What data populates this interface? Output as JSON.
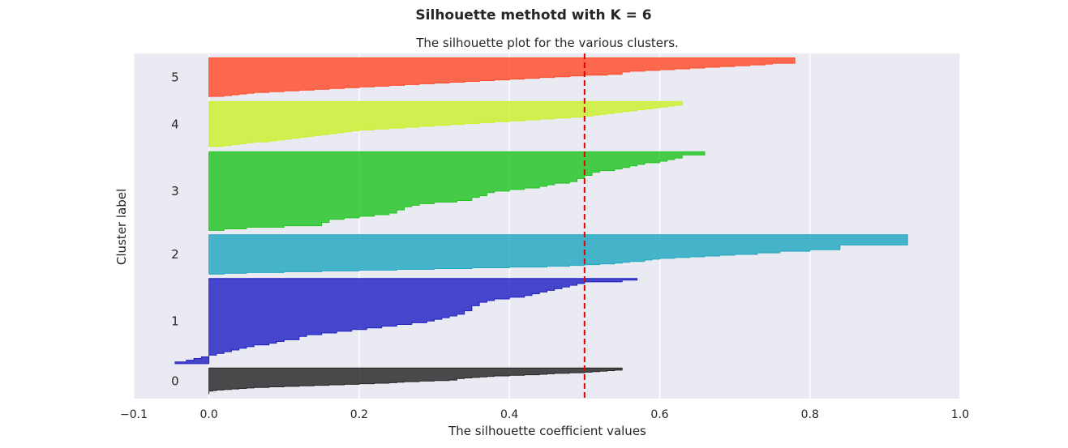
{
  "chart_data": {
    "type": "area",
    "suptitle": "Silhouette  methotd with K = 6",
    "title": "The silhouette plot for the various clusters.",
    "xlabel": "The silhouette coefficient values",
    "ylabel": "Cluster label",
    "xlim": [
      -0.1,
      1.0
    ],
    "xticks": [
      -0.1,
      0.0,
      0.2,
      0.4,
      0.6,
      0.8,
      1.0
    ],
    "xtick_labels": [
      "−0.1",
      "0.0",
      "0.2",
      "0.4",
      "0.6",
      "0.8",
      "1.0"
    ],
    "yticks_visible": false,
    "grid": true,
    "background": "#eaeaf2",
    "average_silhouette": 0.5,
    "average_line_color": "#e00000",
    "clusters": [
      {
        "label": "0",
        "color": "#262626",
        "size": 60,
        "values": [
          0.55,
          0.55,
          0.55,
          0.55,
          0.54,
          0.53,
          0.52,
          0.51,
          0.5,
          0.48,
          0.46,
          0.45,
          0.44,
          0.42,
          0.4,
          0.38,
          0.37,
          0.36,
          0.35,
          0.34,
          0.33,
          0.33,
          0.33,
          0.32,
          0.3,
          0.28,
          0.26,
          0.25,
          0.24,
          0.22,
          0.2,
          0.18,
          0.16,
          0.14,
          0.12,
          0.1,
          0.08,
          0.06,
          0.05,
          0.04,
          0.03,
          0.02,
          0.01,
          0.005,
          0.0,
          0.0,
          0.0,
          0.0,
          0.0,
          0.0
        ]
      },
      {
        "label": "1",
        "color": "#2222c4",
        "size": 195,
        "values": [
          0.57,
          0.55,
          0.5,
          0.49,
          0.48,
          0.47,
          0.46,
          0.45,
          0.44,
          0.43,
          0.42,
          0.4,
          0.38,
          0.37,
          0.36,
          0.36,
          0.35,
          0.35,
          0.35,
          0.34,
          0.34,
          0.33,
          0.32,
          0.31,
          0.3,
          0.29,
          0.27,
          0.25,
          0.23,
          0.21,
          0.19,
          0.17,
          0.15,
          0.13,
          0.12,
          0.12,
          0.1,
          0.09,
          0.08,
          0.06,
          0.05,
          0.04,
          0.03,
          0.02,
          0.01,
          0.0,
          -0.01,
          -0.02,
          -0.03,
          -0.045
        ]
      },
      {
        "label": "2",
        "color": "#21a7c0",
        "size": 90,
        "values": [
          0.93,
          0.93,
          0.93,
          0.93,
          0.93,
          0.93,
          0.93,
          0.93,
          0.93,
          0.93,
          0.93,
          0.93,
          0.93,
          0.84,
          0.84,
          0.84,
          0.84,
          0.84,
          0.84,
          0.8,
          0.8,
          0.76,
          0.76,
          0.73,
          0.73,
          0.7,
          0.68,
          0.66,
          0.64,
          0.62,
          0.6,
          0.59,
          0.58,
          0.58,
          0.56,
          0.55,
          0.54,
          0.52,
          0.5,
          0.48,
          0.45,
          0.4,
          0.35,
          0.3,
          0.25,
          0.2,
          0.15,
          0.1,
          0.05,
          0.02
        ]
      },
      {
        "label": "3",
        "color": "#22c522",
        "size": 180,
        "values": [
          0.66,
          0.66,
          0.63,
          0.63,
          0.62,
          0.61,
          0.6,
          0.58,
          0.57,
          0.56,
          0.55,
          0.54,
          0.52,
          0.51,
          0.51,
          0.5,
          0.5,
          0.49,
          0.49,
          0.48,
          0.46,
          0.45,
          0.44,
          0.42,
          0.4,
          0.38,
          0.37,
          0.37,
          0.36,
          0.35,
          0.35,
          0.33,
          0.3,
          0.28,
          0.27,
          0.26,
          0.26,
          0.25,
          0.25,
          0.24,
          0.22,
          0.2,
          0.18,
          0.16,
          0.16,
          0.15,
          0.15,
          0.1,
          0.05,
          0.02
        ]
      },
      {
        "label": "4",
        "color": "#ccf02a",
        "size": 105,
        "values": [
          0.63,
          0.63,
          0.63,
          0.63,
          0.62,
          0.61,
          0.6,
          0.59,
          0.58,
          0.57,
          0.56,
          0.55,
          0.54,
          0.53,
          0.52,
          0.51,
          0.5,
          0.48,
          0.46,
          0.44,
          0.42,
          0.4,
          0.38,
          0.36,
          0.34,
          0.32,
          0.3,
          0.28,
          0.26,
          0.24,
          0.22,
          0.2,
          0.19,
          0.18,
          0.17,
          0.16,
          0.15,
          0.14,
          0.13,
          0.12,
          0.11,
          0.1,
          0.09,
          0.08,
          0.06,
          0.05,
          0.04,
          0.03,
          0.02,
          0.0
        ]
      },
      {
        "label": "5",
        "color": "#ff4c2a",
        "size": 90,
        "values": [
          0.78,
          0.78,
          0.78,
          0.78,
          0.78,
          0.78,
          0.78,
          0.75,
          0.74,
          0.72,
          0.7,
          0.68,
          0.66,
          0.64,
          0.62,
          0.6,
          0.58,
          0.56,
          0.55,
          0.55,
          0.55,
          0.53,
          0.5,
          0.48,
          0.46,
          0.44,
          0.42,
          0.4,
          0.38,
          0.36,
          0.34,
          0.32,
          0.3,
          0.28,
          0.26,
          0.24,
          0.22,
          0.2,
          0.18,
          0.16,
          0.14,
          0.12,
          0.1,
          0.08,
          0.06,
          0.05,
          0.04,
          0.03,
          0.02,
          0.0
        ]
      }
    ]
  }
}
